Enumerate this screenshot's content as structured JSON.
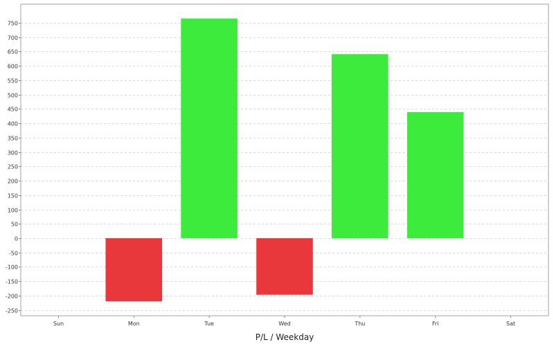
{
  "chart_data": {
    "type": "bar",
    "title": "",
    "xlabel": "P/L / Weekday",
    "ylabel": "",
    "categories": [
      "Sun",
      "Mon",
      "Tue",
      "Wed",
      "Thu",
      "Fri",
      "Sat"
    ],
    "values": [
      0,
      -220,
      765,
      -197,
      641,
      439,
      0
    ],
    "ylim": [
      -270,
      815
    ],
    "yticks": [
      -250,
      -200,
      -150,
      -100,
      -50,
      0,
      50,
      100,
      150,
      200,
      250,
      300,
      350,
      400,
      450,
      500,
      550,
      600,
      650,
      700,
      750
    ],
    "grid": true,
    "legend": "none",
    "colors": {
      "positive": "#3deb3d",
      "negative": "#e8383b",
      "grid": "#d8d8d8",
      "frame": "#a0a0a0"
    }
  }
}
